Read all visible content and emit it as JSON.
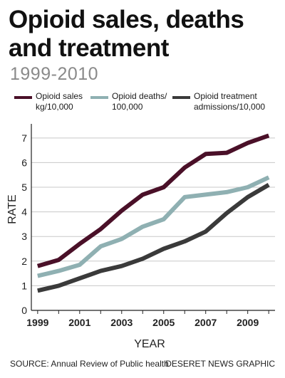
{
  "header": {
    "title": "Opioid sales, deaths and treatment",
    "subtitle": "1999-2010"
  },
  "legend": [
    {
      "label": "Opioid sales kg/10,000",
      "color": "#4a1028"
    },
    {
      "label": "Opioid deaths/ 100,000",
      "color": "#8fb0b2"
    },
    {
      "label": "Opioid treatment admissions/10,000",
      "color": "#3a3a3a"
    }
  ],
  "chart_data": {
    "type": "line",
    "x": [
      1999,
      2000,
      2001,
      2002,
      2003,
      2004,
      2005,
      2006,
      2007,
      2008,
      2009,
      2010
    ],
    "series": [
      {
        "name": "Opioid sales kg/10,000",
        "color": "#4a1028",
        "values": [
          1.8,
          2.05,
          2.7,
          3.3,
          4.05,
          4.7,
          5.0,
          5.8,
          6.35,
          6.4,
          6.8,
          7.1
        ]
      },
      {
        "name": "Opioid deaths/ 100,000",
        "color": "#8fb0b2",
        "values": [
          1.4,
          1.6,
          1.85,
          2.6,
          2.9,
          3.4,
          3.7,
          4.6,
          4.7,
          4.8,
          5.0,
          5.4
        ]
      },
      {
        "name": "Opioid treatment admissions/10,000",
        "color": "#3a3a3a",
        "values": [
          0.8,
          1.0,
          1.3,
          1.6,
          1.8,
          2.1,
          2.5,
          2.8,
          3.2,
          3.95,
          4.6,
          5.1
        ]
      }
    ],
    "xticks": [
      "1999",
      "2001",
      "2003",
      "2005",
      "2007",
      "2009"
    ],
    "yticks": [
      "0",
      "1",
      "2",
      "3",
      "4",
      "5",
      "6",
      "7"
    ],
    "xlabel": "YEAR",
    "ylabel": "RATE",
    "ylim": [
      0,
      7.4
    ],
    "grid": true
  },
  "footer": {
    "source": "SOURCE: Annual Review of Public health",
    "credit": "DESERET NEWS GRAPHIC"
  }
}
